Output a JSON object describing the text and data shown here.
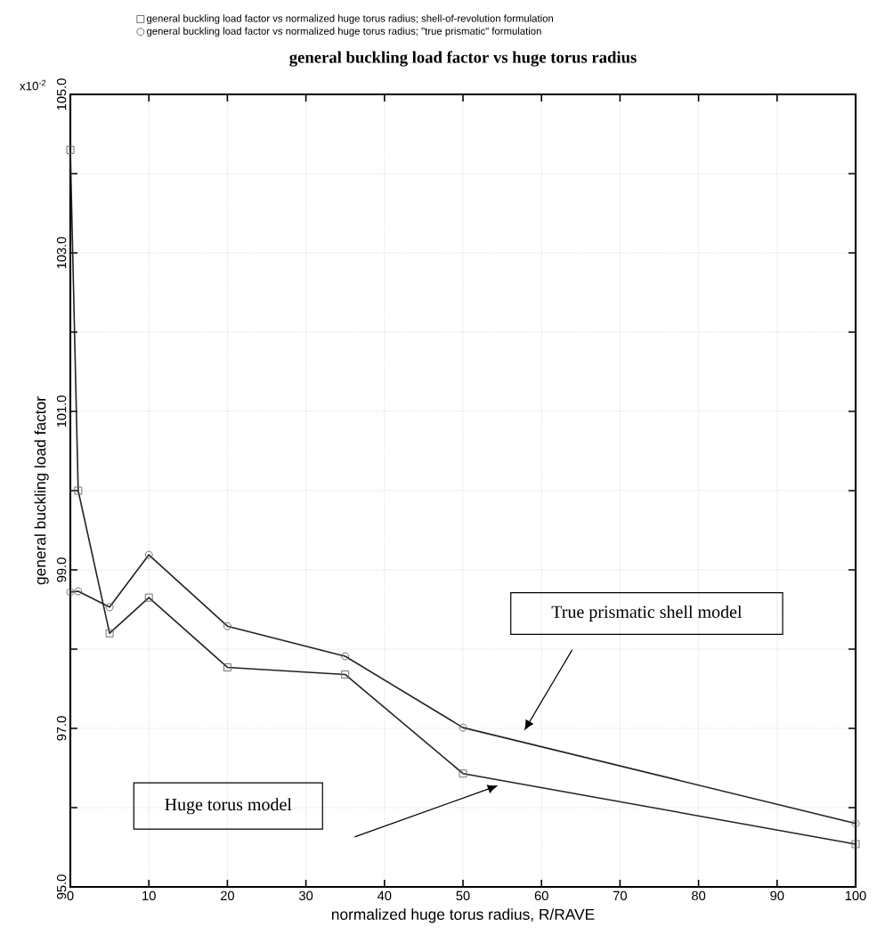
{
  "chart_data": {
    "type": "line",
    "title": "general buckling load factor vs huge torus radius",
    "xlabel": "normalized huge torus radius, R/RAVE",
    "ylabel": "general buckling load factor",
    "series": [
      {
        "name": "general buckling load factor vs normalized huge torus radius; shell-of-revolution formulation",
        "color": "#222222",
        "marker": "square",
        "x": [
          0,
          1,
          5,
          10,
          20,
          35,
          50,
          100
        ],
        "values": [
          104.3,
          100.0,
          98.2,
          98.65,
          97.77,
          97.68,
          96.43,
          95.54
        ]
      },
      {
        "name": "general buckling load factor vs normalized huge torus radius; \"true prismatic\" formulation",
        "color": "#222222",
        "marker": "circle",
        "x": [
          0,
          1,
          5,
          10,
          20,
          35,
          50,
          100
        ],
        "values": [
          98.72,
          98.73,
          98.53,
          99.19,
          98.29,
          97.91,
          97.01,
          95.8
        ]
      }
    ],
    "xlim": [
      0,
      100
    ],
    "ylim": [
      95,
      105
    ],
    "xticks": [
      0,
      10,
      20,
      30,
      40,
      50,
      60,
      70,
      80,
      90,
      100
    ],
    "yticks": [
      {
        "value": 95,
        "label": "95.0"
      },
      {
        "value": 96,
        "label": null
      },
      {
        "value": 97,
        "label": "97.0"
      },
      {
        "value": 98,
        "label": null
      },
      {
        "value": 99,
        "label": "99.0"
      },
      {
        "value": 100,
        "label": null
      },
      {
        "value": 101,
        "label": "101.0"
      },
      {
        "value": 102,
        "label": null
      },
      {
        "value": 103,
        "label": "103.0"
      },
      {
        "value": 104,
        "label": null
      },
      {
        "value": 105,
        "label": "105.0"
      }
    ],
    "grid": true,
    "legend": "top left",
    "line_style": "solid",
    "annotations": [
      "x10$^{-2}$",
      "True prismatic shell model",
      "Huge torus model"
    ]
  }
}
